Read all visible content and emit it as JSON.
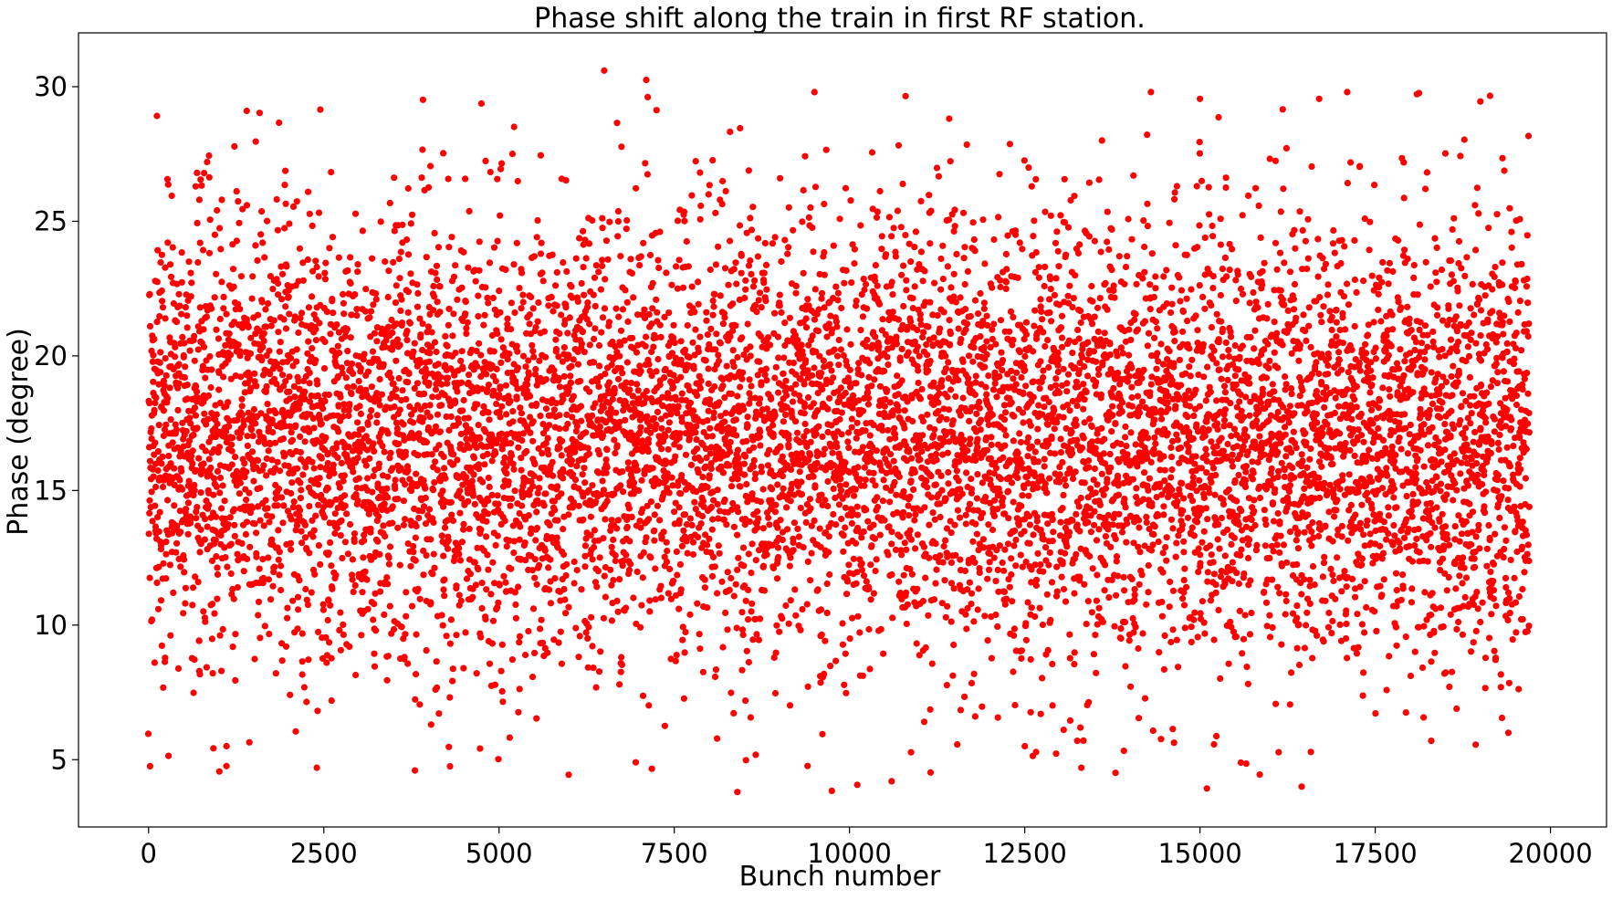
{
  "chart_data": {
    "type": "scatter",
    "title": "Phase shift along the train in first RF station.",
    "xlabel": "Bunch number",
    "ylabel": "Phase (degree)",
    "xlim": [
      -1000,
      20800
    ],
    "ylim": [
      2.5,
      32
    ],
    "xticks": [
      0,
      2500,
      5000,
      7500,
      10000,
      12500,
      15000,
      17500,
      20000
    ],
    "yticks": [
      5,
      10,
      15,
      20,
      25,
      30
    ],
    "grid": false,
    "legend": null,
    "marker_color": "#ff0000",
    "series": [
      {
        "approx_point_count": 20000,
        "x_range": [
          0,
          19700
        ],
        "y_min": 3.8,
        "y_max": 30.6,
        "distribution": "random scatter centred near 17 degrees, spread roughly ±4.5 degrees with sparse outliers",
        "mean": 17.0,
        "std_dev": 4.0,
        "sample_points": [
          {
            "x": 8400,
            "y": 3.8
          },
          {
            "x": 16450,
            "y": 4.0
          },
          {
            "x": 10600,
            "y": 4.2
          },
          {
            "x": 3800,
            "y": 4.6
          },
          {
            "x": 2400,
            "y": 4.7
          },
          {
            "x": 4300,
            "y": 4.75
          },
          {
            "x": 6950,
            "y": 4.9
          },
          {
            "x": 12500,
            "y": 5.5
          },
          {
            "x": 13250,
            "y": 5.7
          },
          {
            "x": 18300,
            "y": 5.7
          },
          {
            "x": 19400,
            "y": 6.0
          },
          {
            "x": 6500,
            "y": 30.6
          },
          {
            "x": 7100,
            "y": 30.25
          },
          {
            "x": 9500,
            "y": 29.8
          },
          {
            "x": 17100,
            "y": 29.8
          },
          {
            "x": 14300,
            "y": 29.8
          },
          {
            "x": 10800,
            "y": 29.65
          },
          {
            "x": 16700,
            "y": 29.55
          },
          {
            "x": 15000,
            "y": 29.55
          },
          {
            "x": 19000,
            "y": 29.45
          },
          {
            "x": 2450,
            "y": 29.15
          },
          {
            "x": 1400,
            "y": 29.1
          }
        ]
      }
    ]
  }
}
